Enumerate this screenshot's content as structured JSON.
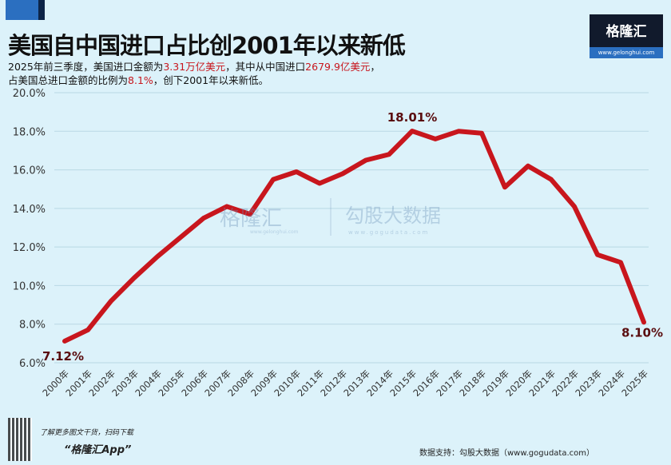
{
  "header": {
    "title": "美国自中国进口占比创2001年以来新低",
    "line1_a": "2025年前三季度，美国进口金额为",
    "line1_b": "3.31万亿美元",
    "line1_c": "，其中从中国进口",
    "line1_d": "2679.9亿美元",
    "line1_e": "，",
    "line2_a": "占美国总进口金额的比例为",
    "line2_b": "8.1%",
    "line2_c": "，创下2001年以来新低。"
  },
  "logo": {
    "name": "格隆汇",
    "url": "www.gelonghui.com"
  },
  "watermark": {
    "a": "格隆汇",
    "a_url": "www.gelonghui.com",
    "b": "勾股大数据",
    "b_url": "www.gogudata.com"
  },
  "footer": {
    "promo": "了解更多图文干货，扫码下载",
    "app": "“格隆汇App”",
    "source": "数据支持：勾股大数据（www.gogudata.com）"
  },
  "colors": {
    "line": "#c8161d",
    "background": "#dcf2fa",
    "grid": "#b9d8e4"
  },
  "chart_data": {
    "type": "line",
    "title": "美国自中国进口占比创2001年以来新低",
    "x": [
      "2000年",
      "2001年",
      "2002年",
      "2003年",
      "2004年",
      "2005年",
      "2006年",
      "2007年",
      "2008年",
      "2009年",
      "2010年",
      "2011年",
      "2012年",
      "2013年",
      "2014年",
      "2015年",
      "2016年",
      "2017年",
      "2018年",
      "2019年",
      "2020年",
      "2021年",
      "2022年",
      "2023年",
      "2024年",
      "2025年"
    ],
    "series": [
      {
        "values": [
          7.12,
          7.7,
          9.2,
          10.4,
          11.5,
          12.5,
          13.5,
          14.1,
          13.7,
          15.5,
          15.9,
          15.3,
          15.8,
          16.5,
          16.8,
          18.01,
          17.6,
          18.0,
          17.9,
          15.1,
          16.2,
          15.5,
          14.1,
          11.6,
          11.2,
          8.1
        ]
      }
    ],
    "yticks": [
      "6.0%",
      "8.0%",
      "10.0%",
      "12.0%",
      "14.0%",
      "16.0%",
      "18.0%",
      "20.0%"
    ],
    "ylim": [
      6,
      20
    ],
    "grid": true,
    "annotations": [
      {
        "x": "2000年",
        "label": "7.12%"
      },
      {
        "x": "2015年",
        "label": "18.01%"
      },
      {
        "x": "2025年",
        "label": "8.10%"
      }
    ]
  }
}
